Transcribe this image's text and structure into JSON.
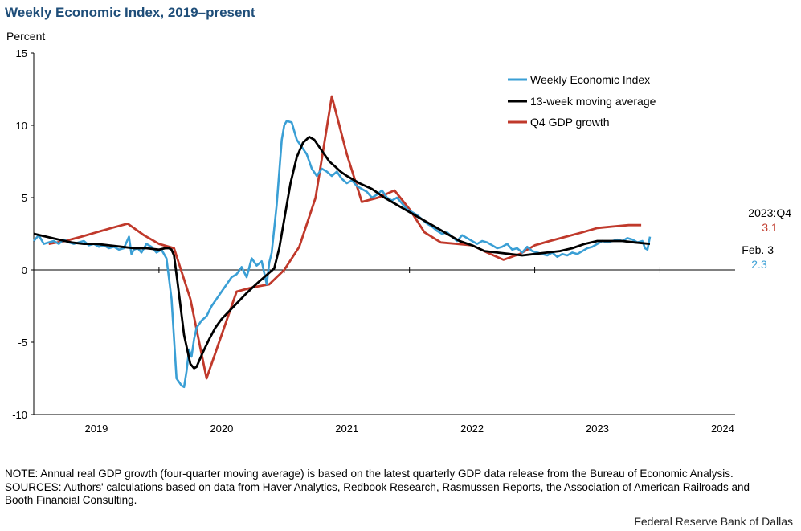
{
  "title": "Weekly Economic Index, 2019–present",
  "note_lines": [
    "NOTE: Annual real GDP growth (four-quarter moving average) is based on the latest quarterly GDP data release from the Bureau of Economic Analysis.",
    "SOURCES: Authors' calculations based on data from Haver Analytics, Redbook Research, Rasmussen Reports, the Association of American Railroads and Booth Financial Consulting."
  ],
  "source_credit": "Federal Reserve Bank of Dallas",
  "chart_data": {
    "type": "line",
    "title": "Weekly Economic Index, 2019–present",
    "ylabel": "Percent",
    "xlabel": "",
    "ylim": [
      -10,
      15
    ],
    "yticks": [
      "15",
      "10",
      "5",
      "0",
      "-5",
      "-10"
    ],
    "xlim": [
      2018.5,
      2024.1
    ],
    "xticks": [
      "2019",
      "2020",
      "2021",
      "2022",
      "2023",
      "2024"
    ],
    "legend_position": "top-right",
    "annotations": {
      "gdp_label": "2023:Q4",
      "gdp_value": "3.1",
      "wei_label": "Feb. 3",
      "wei_value": "2.3"
    },
    "series": [
      {
        "name": "Weekly Economic Index",
        "color": "#3a9fd5",
        "x": [
          2018.5,
          2018.54,
          2018.58,
          2018.62,
          2018.66,
          2018.7,
          2018.74,
          2018.78,
          2018.82,
          2018.86,
          2018.9,
          2018.94,
          2018.98,
          2019.02,
          2019.06,
          2019.1,
          2019.14,
          2019.18,
          2019.22,
          2019.26,
          2019.28,
          2019.3,
          2019.33,
          2019.36,
          2019.4,
          2019.44,
          2019.48,
          2019.52,
          2019.56,
          2019.6,
          2019.64,
          2019.68,
          2019.7,
          2019.72,
          2019.74,
          2019.76,
          2019.78,
          2019.8,
          2019.84,
          2019.88,
          2019.92,
          2019.96,
          2020.0,
          2020.04,
          2020.08,
          2020.12,
          2020.16,
          2020.2,
          2020.24,
          2020.28,
          2020.32,
          2020.36,
          2020.38,
          2020.4,
          2020.44,
          2020.48,
          2020.5,
          2020.52,
          2020.56,
          2020.6,
          2020.64,
          2020.68,
          2020.72,
          2020.76,
          2020.8,
          2020.84,
          2020.88,
          2020.92,
          2020.96,
          2021.0,
          2021.04,
          2021.08,
          2021.12,
          2021.16,
          2021.2,
          2021.24,
          2021.28,
          2021.32,
          2021.36,
          2021.4,
          2021.44,
          2021.48,
          2021.52,
          2021.56,
          2021.6,
          2021.64,
          2021.68,
          2021.72,
          2021.76,
          2021.8,
          2021.84,
          2021.88,
          2021.92,
          2021.96,
          2022.0,
          2022.04,
          2022.08,
          2022.12,
          2022.16,
          2022.2,
          2022.24,
          2022.28,
          2022.32,
          2022.36,
          2022.4,
          2022.44,
          2022.48,
          2022.52,
          2022.56,
          2022.6,
          2022.64,
          2022.68,
          2022.72,
          2022.76,
          2022.8,
          2022.84,
          2022.88,
          2022.92,
          2022.96,
          2023.0,
          2023.04,
          2023.08,
          2023.12,
          2023.16,
          2023.2,
          2023.24,
          2023.28,
          2023.32,
          2023.36,
          2023.38,
          2023.4,
          2023.42
        ],
        "values": [
          2.0,
          2.4,
          1.8,
          1.9,
          2.0,
          1.8,
          2.1,
          1.9,
          1.8,
          1.9,
          2.0,
          1.7,
          1.8,
          1.6,
          1.7,
          1.5,
          1.6,
          1.4,
          1.5,
          2.3,
          1.1,
          1.4,
          1.5,
          1.2,
          1.8,
          1.6,
          1.2,
          1.4,
          0.8,
          -2.0,
          -7.5,
          -8.0,
          -8.1,
          -7.0,
          -5.5,
          -6.0,
          -4.8,
          -4.0,
          -3.5,
          -3.2,
          -2.5,
          -2.0,
          -1.5,
          -1.0,
          -0.5,
          -0.3,
          0.2,
          -0.5,
          0.8,
          0.3,
          0.6,
          -1.0,
          0.5,
          1.2,
          4.5,
          9.0,
          10.0,
          10.3,
          10.2,
          9.0,
          8.5,
          8.0,
          7.0,
          6.5,
          7.0,
          6.8,
          6.5,
          6.8,
          6.3,
          6.0,
          6.2,
          5.8,
          5.6,
          5.4,
          5.0,
          5.2,
          5.5,
          5.0,
          4.8,
          5.0,
          4.6,
          4.2,
          4.0,
          3.8,
          3.5,
          3.2,
          3.0,
          2.7,
          2.5,
          2.6,
          2.3,
          2.0,
          2.4,
          2.2,
          2.0,
          1.8,
          2.0,
          1.9,
          1.7,
          1.5,
          1.6,
          1.8,
          1.4,
          1.5,
          1.2,
          1.6,
          1.3,
          1.2,
          1.1,
          1.0,
          1.2,
          0.9,
          1.1,
          1.0,
          1.2,
          1.1,
          1.3,
          1.5,
          1.6,
          1.8,
          2.0,
          1.9,
          2.0,
          2.1,
          2.0,
          2.2,
          2.1,
          1.9,
          2.0,
          1.5,
          1.4,
          2.3
        ]
      },
      {
        "name": "13-week moving average",
        "color": "#000000",
        "x": [
          2018.5,
          2018.6,
          2018.7,
          2018.8,
          2018.9,
          2019.0,
          2019.1,
          2019.2,
          2019.3,
          2019.4,
          2019.5,
          2019.55,
          2019.58,
          2019.6,
          2019.62,
          2019.65,
          2019.7,
          2019.75,
          2019.78,
          2019.8,
          2019.82,
          2019.85,
          2019.9,
          2019.95,
          2020.0,
          2020.1,
          2020.2,
          2020.3,
          2020.38,
          2020.42,
          2020.46,
          2020.5,
          2020.55,
          2020.6,
          2020.65,
          2020.7,
          2020.74,
          2020.78,
          2020.82,
          2020.86,
          2020.9,
          2020.95,
          2021.0,
          2021.1,
          2021.2,
          2021.3,
          2021.4,
          2021.5,
          2021.6,
          2021.7,
          2021.8,
          2021.9,
          2022.0,
          2022.1,
          2022.2,
          2022.3,
          2022.4,
          2022.5,
          2022.6,
          2022.7,
          2022.8,
          2022.9,
          2023.0,
          2023.1,
          2023.2,
          2023.3,
          2023.42
        ],
        "values": [
          2.5,
          2.3,
          2.1,
          1.9,
          1.8,
          1.8,
          1.7,
          1.6,
          1.5,
          1.5,
          1.4,
          1.5,
          1.5,
          1.4,
          1.0,
          -1.0,
          -4.5,
          -6.5,
          -6.8,
          -6.7,
          -6.3,
          -5.7,
          -4.8,
          -4.0,
          -3.4,
          -2.5,
          -1.6,
          -0.8,
          -0.2,
          0.1,
          1.5,
          3.5,
          6.0,
          7.8,
          8.8,
          9.2,
          9.0,
          8.5,
          8.0,
          7.5,
          7.2,
          6.8,
          6.5,
          6.0,
          5.6,
          5.0,
          4.5,
          4.0,
          3.5,
          3.0,
          2.5,
          2.0,
          1.7,
          1.3,
          1.2,
          1.1,
          1.0,
          1.1,
          1.2,
          1.3,
          1.5,
          1.8,
          2.0,
          2.0,
          2.0,
          1.9,
          1.8
        ]
      },
      {
        "name": "Q4 GDP growth",
        "color": "#c0392b",
        "x": [
          2018.62,
          2018.75,
          2018.88,
          2019.0,
          2019.12,
          2019.25,
          2019.38,
          2019.5,
          2019.62,
          2019.75,
          2019.88,
          2020.0,
          2020.12,
          2020.25,
          2020.38,
          2020.5,
          2020.62,
          2020.75,
          2020.88,
          2021.0,
          2021.12,
          2021.25,
          2021.38,
          2021.5,
          2021.62,
          2021.75,
          2021.88,
          2022.0,
          2022.12,
          2022.25,
          2022.38,
          2022.5,
          2022.62,
          2022.75,
          2022.88,
          2023.0,
          2023.12,
          2023.25,
          2023.35
        ],
        "values": [
          1.8,
          2.0,
          2.3,
          2.6,
          2.9,
          3.2,
          2.4,
          1.8,
          1.5,
          -2.0,
          -7.5,
          -4.5,
          -1.5,
          -1.2,
          -1.0,
          0.0,
          1.6,
          5.0,
          12.0,
          8.0,
          4.7,
          5.0,
          5.5,
          4.2,
          2.6,
          1.9,
          1.8,
          1.7,
          1.2,
          0.7,
          1.1,
          1.7,
          2.0,
          2.3,
          2.6,
          2.9,
          3.0,
          3.1,
          3.1
        ]
      }
    ]
  }
}
